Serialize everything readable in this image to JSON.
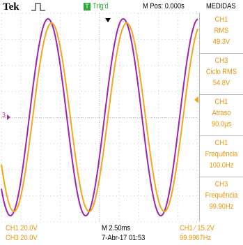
{
  "header": {
    "brand": "Tek",
    "trigger_badge": "T",
    "trigger_status": "Trig'd",
    "position": "M Pos: 0.000s",
    "menu": "MEDIDAS"
  },
  "measurements": [
    {
      "channel": "CH1",
      "label": "RMS",
      "value": "49.3V"
    },
    {
      "channel": "CH3",
      "label": "Ciclo RMS",
      "value": "54.8V"
    },
    {
      "channel": "CH1",
      "label": "Atraso",
      "value": "90.0µs"
    },
    {
      "channel": "CH1",
      "label": "Frequência",
      "value": "100.0Hz"
    },
    {
      "channel": "CH3",
      "label": "Frequência",
      "value": "99.90Hz"
    }
  ],
  "markers": {
    "ch3": "3"
  },
  "footer": {
    "ch1_scale": "CH1 20.0V",
    "ch3_scale": "CH3 20.0V",
    "timebase": "M 2.50ms",
    "datetime": "7-Abr-17 01:53",
    "trigger": "CH1 ⁄ 15.2V",
    "frequency": "99.9967Hz"
  }
}
